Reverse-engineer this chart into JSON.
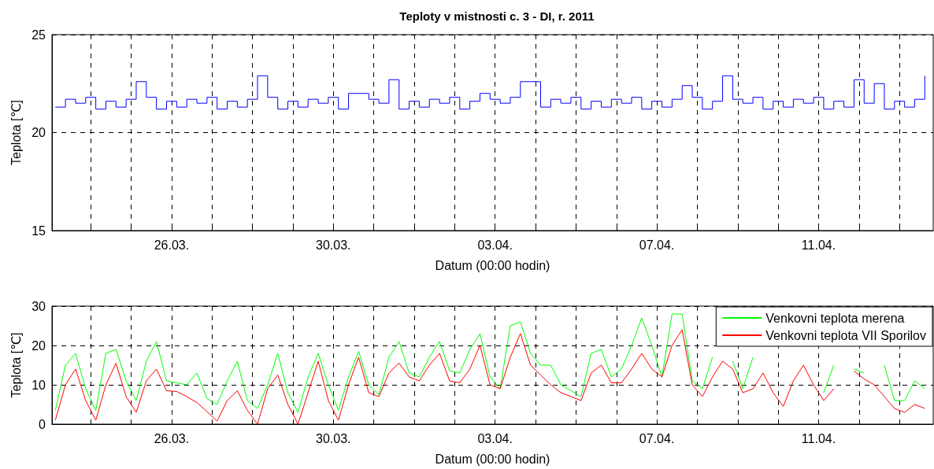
{
  "chart_data": [
    {
      "type": "step",
      "title": "Teploty v mistnosti c. 3 - DI, r. 2011",
      "xlabel": "Datum (00:00 hodin)",
      "ylabel": "Teplota [℃]",
      "grid": true,
      "legend": false,
      "xlim": [
        "2011-03-23T01:00",
        "2011-04-13T20:00"
      ],
      "xticks": [
        {
          "value": "2011-03-24",
          "label": null
        },
        {
          "value": "2011-03-25",
          "label": null
        },
        {
          "value": "2011-03-26",
          "label": "26.03."
        },
        {
          "value": "2011-03-27",
          "label": null
        },
        {
          "value": "2011-03-28",
          "label": null
        },
        {
          "value": "2011-03-29",
          "label": null
        },
        {
          "value": "2011-03-30",
          "label": "30.03."
        },
        {
          "value": "2011-03-31",
          "label": null
        },
        {
          "value": "2011-04-01",
          "label": null
        },
        {
          "value": "2011-04-02",
          "label": null
        },
        {
          "value": "2011-04-03",
          "label": "03.04."
        },
        {
          "value": "2011-04-04",
          "label": null
        },
        {
          "value": "2011-04-05",
          "label": null
        },
        {
          "value": "2011-04-06",
          "label": null
        },
        {
          "value": "2011-04-07",
          "label": "07.04."
        },
        {
          "value": "2011-04-08",
          "label": null
        },
        {
          "value": "2011-04-09",
          "label": null
        },
        {
          "value": "2011-04-10",
          "label": null
        },
        {
          "value": "2011-04-11",
          "label": "11.04."
        },
        {
          "value": "2011-04-12",
          "label": null
        },
        {
          "value": "2011-04-13",
          "label": null
        }
      ],
      "ylim": [
        15,
        25
      ],
      "yticks": [
        15,
        20,
        25
      ],
      "x": [
        "2011-03-23T03:00",
        "2011-03-23T09:00",
        "2011-03-23T15:00",
        "2011-03-23T21:00",
        "2011-03-24T03:00",
        "2011-03-24T09:00",
        "2011-03-24T15:00",
        "2011-03-24T21:00",
        "2011-03-25T03:00",
        "2011-03-25T09:00",
        "2011-03-25T15:00",
        "2011-03-25T21:00",
        "2011-03-26T03:00",
        "2011-03-26T09:00",
        "2011-03-26T15:00",
        "2011-03-26T21:00",
        "2011-03-27T03:00",
        "2011-03-27T09:00",
        "2011-03-27T15:00",
        "2011-03-27T21:00",
        "2011-03-28T03:00",
        "2011-03-28T09:00",
        "2011-03-28T15:00",
        "2011-03-28T21:00",
        "2011-03-29T03:00",
        "2011-03-29T09:00",
        "2011-03-29T15:00",
        "2011-03-29T21:00",
        "2011-03-30T03:00",
        "2011-03-30T09:00",
        "2011-03-30T15:00",
        "2011-03-30T21:00",
        "2011-03-31T03:00",
        "2011-03-31T09:00",
        "2011-03-31T15:00",
        "2011-03-31T21:00",
        "2011-04-01T03:00",
        "2011-04-01T09:00",
        "2011-04-01T15:00",
        "2011-04-01T21:00",
        "2011-04-02T03:00",
        "2011-04-02T09:00",
        "2011-04-02T15:00",
        "2011-04-02T21:00",
        "2011-04-03T03:00",
        "2011-04-03T09:00",
        "2011-04-03T15:00",
        "2011-04-03T21:00",
        "2011-04-04T03:00",
        "2011-04-04T09:00",
        "2011-04-04T15:00",
        "2011-04-04T21:00",
        "2011-04-05T03:00",
        "2011-04-05T09:00",
        "2011-04-05T15:00",
        "2011-04-05T21:00",
        "2011-04-06T03:00",
        "2011-04-06T09:00",
        "2011-04-06T15:00",
        "2011-04-06T21:00",
        "2011-04-07T03:00",
        "2011-04-07T09:00",
        "2011-04-07T15:00",
        "2011-04-07T21:00",
        "2011-04-08T03:00",
        "2011-04-08T09:00",
        "2011-04-08T15:00",
        "2011-04-08T21:00",
        "2011-04-09T03:00",
        "2011-04-09T09:00",
        "2011-04-09T15:00",
        "2011-04-09T21:00",
        "2011-04-10T03:00",
        "2011-04-10T09:00",
        "2011-04-10T15:00",
        "2011-04-10T21:00",
        "2011-04-11T03:00",
        "2011-04-11T09:00",
        "2011-04-11T15:00",
        "2011-04-11T21:00",
        "2011-04-12T03:00",
        "2011-04-12T09:00",
        "2011-04-12T15:00",
        "2011-04-12T21:00",
        "2011-04-13T03:00",
        "2011-04-13T09:00",
        "2011-04-13T15:00"
      ],
      "series": [
        {
          "color": "#0000ff",
          "values": [
            21.3,
            21.7,
            21.5,
            21.8,
            21.2,
            21.6,
            21.3,
            21.7,
            22.6,
            21.8,
            21.2,
            21.6,
            21.3,
            21.7,
            21.5,
            21.8,
            21.2,
            21.6,
            21.3,
            21.7,
            22.9,
            21.8,
            21.2,
            21.6,
            21.3,
            21.7,
            21.5,
            21.8,
            21.2,
            22.0,
            22.0,
            21.7,
            21.5,
            22.7,
            21.2,
            21.6,
            21.3,
            21.7,
            21.5,
            21.8,
            21.2,
            21.6,
            22.0,
            21.7,
            21.5,
            21.8,
            22.6,
            22.6,
            21.3,
            21.7,
            21.5,
            21.8,
            21.2,
            21.6,
            21.3,
            21.7,
            21.5,
            21.8,
            21.2,
            21.6,
            21.3,
            21.7,
            22.4,
            21.8,
            21.2,
            21.6,
            22.9,
            21.7,
            21.5,
            21.8,
            21.2,
            21.6,
            21.3,
            21.7,
            21.5,
            21.8,
            21.2,
            21.6,
            21.3,
            22.7,
            21.5,
            22.5,
            21.2,
            21.6,
            21.3,
            21.7,
            22.9
          ]
        }
      ]
    },
    {
      "type": "line",
      "xlabel": "Datum (00:00 hodin)",
      "ylabel": "Teplota [℃]",
      "grid": true,
      "legend": "top right",
      "xlim": [
        "2011-03-23T01:00",
        "2011-04-13T20:00"
      ],
      "xticks": [
        {
          "value": "2011-03-24",
          "label": null
        },
        {
          "value": "2011-03-25",
          "label": null
        },
        {
          "value": "2011-03-26",
          "label": "26.03."
        },
        {
          "value": "2011-03-27",
          "label": null
        },
        {
          "value": "2011-03-28",
          "label": null
        },
        {
          "value": "2011-03-29",
          "label": null
        },
        {
          "value": "2011-03-30",
          "label": "30.03."
        },
        {
          "value": "2011-03-31",
          "label": null
        },
        {
          "value": "2011-04-01",
          "label": null
        },
        {
          "value": "2011-04-02",
          "label": null
        },
        {
          "value": "2011-04-03",
          "label": "03.04."
        },
        {
          "value": "2011-04-04",
          "label": null
        },
        {
          "value": "2011-04-05",
          "label": null
        },
        {
          "value": "2011-04-06",
          "label": null
        },
        {
          "value": "2011-04-07",
          "label": "07.04."
        },
        {
          "value": "2011-04-08",
          "label": null
        },
        {
          "value": "2011-04-09",
          "label": null
        },
        {
          "value": "2011-04-10",
          "label": null
        },
        {
          "value": "2011-04-11",
          "label": "11.04."
        },
        {
          "value": "2011-04-12",
          "label": null
        },
        {
          "value": "2011-04-13",
          "label": null
        }
      ],
      "ylim": [
        0,
        30
      ],
      "yticks": [
        0,
        10,
        20,
        30
      ],
      "x": [
        "2011-03-23T03:00",
        "2011-03-23T09:00",
        "2011-03-23T15:00",
        "2011-03-23T21:00",
        "2011-03-24T03:00",
        "2011-03-24T09:00",
        "2011-03-24T15:00",
        "2011-03-24T21:00",
        "2011-03-25T03:00",
        "2011-03-25T09:00",
        "2011-03-25T15:00",
        "2011-03-25T21:00",
        "2011-03-26T03:00",
        "2011-03-26T09:00",
        "2011-03-26T15:00",
        "2011-03-26T21:00",
        "2011-03-27T03:00",
        "2011-03-27T09:00",
        "2011-03-27T15:00",
        "2011-03-27T21:00",
        "2011-03-28T03:00",
        "2011-03-28T09:00",
        "2011-03-28T15:00",
        "2011-03-28T21:00",
        "2011-03-29T03:00",
        "2011-03-29T09:00",
        "2011-03-29T15:00",
        "2011-03-29T21:00",
        "2011-03-30T03:00",
        "2011-03-30T09:00",
        "2011-03-30T15:00",
        "2011-03-30T21:00",
        "2011-03-31T03:00",
        "2011-03-31T09:00",
        "2011-03-31T15:00",
        "2011-03-31T21:00",
        "2011-04-01T03:00",
        "2011-04-01T09:00",
        "2011-04-01T15:00",
        "2011-04-01T21:00",
        "2011-04-02T03:00",
        "2011-04-02T09:00",
        "2011-04-02T15:00",
        "2011-04-02T21:00",
        "2011-04-03T03:00",
        "2011-04-03T09:00",
        "2011-04-03T15:00",
        "2011-04-03T21:00",
        "2011-04-04T03:00",
        "2011-04-04T09:00",
        "2011-04-04T15:00",
        "2011-04-04T21:00",
        "2011-04-05T03:00",
        "2011-04-05T09:00",
        "2011-04-05T15:00",
        "2011-04-05T21:00",
        "2011-04-06T03:00",
        "2011-04-06T09:00",
        "2011-04-06T15:00",
        "2011-04-06T21:00",
        "2011-04-07T03:00",
        "2011-04-07T09:00",
        "2011-04-07T15:00",
        "2011-04-07T21:00",
        "2011-04-08T03:00",
        "2011-04-08T09:00",
        "2011-04-08T15:00",
        "2011-04-08T21:00",
        "2011-04-09T03:00",
        "2011-04-09T09:00",
        "2011-04-09T15:00",
        "2011-04-09T21:00",
        "2011-04-10T03:00",
        "2011-04-10T09:00",
        "2011-04-10T15:00",
        "2011-04-10T21:00",
        "2011-04-11T03:00",
        "2011-04-11T09:00",
        "2011-04-11T15:00",
        "2011-04-11T21:00",
        "2011-04-12T03:00",
        "2011-04-12T09:00",
        "2011-04-12T15:00",
        "2011-04-12T21:00",
        "2011-04-13T03:00",
        "2011-04-13T09:00",
        "2011-04-13T15:00"
      ],
      "series": [
        {
          "name": "Venkovni teplota merena",
          "color": "#00ff00",
          "values": [
            3.5,
            15,
            18,
            9,
            3.5,
            18,
            19,
            11,
            6,
            16,
            21,
            11,
            10.5,
            10,
            13,
            6.5,
            5,
            11,
            16,
            6,
            4,
            10,
            18,
            8,
            3,
            12,
            18,
            10,
            3.5,
            12,
            18.5,
            10,
            7.5,
            17,
            21,
            13,
            12,
            17,
            21,
            13.5,
            13,
            19,
            23,
            12,
            9,
            25,
            26,
            18,
            15,
            15,
            10,
            8.5,
            7,
            18,
            19,
            12,
            14,
            20,
            27,
            20,
            12,
            28,
            28,
            11,
            9,
            17,
            null,
            16,
            9,
            17,
            null,
            null,
            null,
            null,
            null,
            null,
            8,
            15,
            null,
            14,
            13,
            null,
            15,
            6,
            6,
            11,
            9
          ]
        },
        {
          "name": "Venkovni teplota VII Sporilov",
          "color": "#ff0000",
          "values": [
            1,
            10,
            14,
            6,
            1,
            10,
            15.5,
            7,
            3,
            11,
            14,
            8.5,
            8.3,
            7,
            5.5,
            3.2,
            0.8,
            6,
            8.5,
            3.5,
            0,
            9,
            12.5,
            5,
            0,
            8,
            16,
            6,
            1,
            10,
            17,
            8,
            7,
            13,
            15.5,
            12,
            11,
            15,
            18,
            11,
            10.5,
            14,
            20,
            10,
            9,
            17,
            23,
            15,
            12.5,
            10,
            8,
            7,
            6,
            13,
            15,
            10.5,
            10.5,
            14,
            18,
            14,
            12,
            20,
            24,
            10,
            7,
            12,
            16,
            14,
            8,
            9,
            13,
            8,
            4.5,
            11,
            15,
            10,
            6,
            9,
            null,
            13.5,
            11.5,
            10,
            7,
            4,
            3,
            5,
            4
          ]
        }
      ]
    }
  ]
}
